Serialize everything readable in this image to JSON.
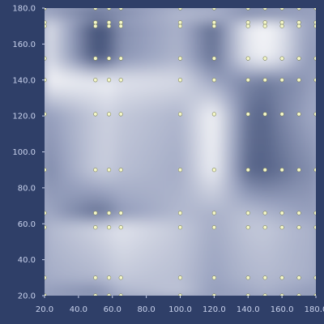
{
  "chart_data": {
    "type": "heatmap",
    "title": "",
    "xlabel": "",
    "ylabel": "",
    "xlim": [
      20,
      180
    ],
    "ylim": [
      20,
      180
    ],
    "x_ticks": [
      20,
      40,
      60,
      80,
      100,
      120,
      140,
      160,
      180
    ],
    "y_ticks": [
      20,
      40,
      60,
      80,
      100,
      120,
      140,
      160,
      180
    ],
    "x_tick_labels": [
      "20.0",
      "40.0",
      "60.0",
      "80.0",
      "100.0",
      "120.0",
      "140.0",
      "160.0",
      "180.0"
    ],
    "y_tick_labels": [
      "20.0",
      "40.0",
      "60.0",
      "80.0",
      "100.0",
      "120.0",
      "140.0",
      "160.0",
      "180.0"
    ],
    "grid": false,
    "colormap": [
      "#2f3f68",
      "#9aa3c0",
      "#ffffff"
    ],
    "sample_x": [
      20,
      50,
      58,
      65,
      100,
      120,
      140,
      150,
      160,
      170,
      180
    ],
    "sample_y": [
      20,
      30,
      58,
      66,
      90,
      121,
      140,
      152,
      170,
      172,
      180
    ],
    "points_color": "#f4f7c8",
    "field": [
      [
        0.4,
        0.15,
        0.22,
        0.3,
        0.62,
        0.58,
        0.3,
        0.32,
        0.36,
        0.4,
        0.42
      ],
      [
        0.75,
        0.45,
        0.48,
        0.52,
        0.6,
        0.55,
        0.58,
        0.62,
        0.6,
        0.58,
        0.55
      ],
      [
        0.9,
        0.1,
        0.15,
        0.4,
        0.58,
        0.22,
        0.88,
        0.95,
        0.85,
        0.6,
        0.45
      ],
      [
        0.88,
        0.12,
        0.18,
        0.42,
        0.6,
        0.25,
        0.85,
        0.92,
        0.82,
        0.58,
        0.4
      ],
      [
        0.95,
        0.9,
        0.92,
        0.85,
        0.8,
        0.5,
        0.35,
        0.3,
        0.35,
        0.4,
        0.5
      ],
      [
        0.45,
        0.7,
        0.75,
        0.7,
        0.6,
        0.95,
        0.25,
        0.2,
        0.35,
        0.45,
        0.55
      ],
      [
        0.35,
        0.7,
        0.72,
        0.65,
        0.55,
        0.92,
        0.2,
        0.18,
        0.25,
        0.35,
        0.4
      ],
      [
        0.55,
        0.25,
        0.3,
        0.45,
        0.62,
        0.58,
        0.65,
        0.6,
        0.55,
        0.5,
        0.48
      ],
      [
        0.6,
        0.75,
        0.8,
        0.85,
        0.7,
        0.55,
        0.68,
        0.7,
        0.65,
        0.6,
        0.58
      ],
      [
        0.55,
        0.6,
        0.65,
        0.7,
        0.65,
        0.5,
        0.6,
        0.62,
        0.6,
        0.58,
        0.55
      ],
      [
        0.45,
        0.3,
        0.4,
        0.55,
        0.7,
        0.45,
        0.5,
        0.55,
        0.5,
        0.45,
        0.4
      ]
    ],
    "points": [
      [
        20,
        180
      ],
      [
        50,
        180
      ],
      [
        58,
        180
      ],
      [
        65,
        180
      ],
      [
        100,
        180
      ],
      [
        120,
        180
      ],
      [
        140,
        180
      ],
      [
        150,
        180
      ],
      [
        160,
        180
      ],
      [
        170,
        180
      ],
      [
        180,
        180
      ],
      [
        20,
        172
      ],
      [
        50,
        172
      ],
      [
        58,
        172
      ],
      [
        65,
        172
      ],
      [
        100,
        172
      ],
      [
        120,
        172
      ],
      [
        140,
        172
      ],
      [
        150,
        172
      ],
      [
        160,
        172
      ],
      [
        170,
        172
      ],
      [
        180,
        172
      ],
      [
        20,
        170
      ],
      [
        50,
        170
      ],
      [
        58,
        170
      ],
      [
        65,
        170
      ],
      [
        100,
        170
      ],
      [
        120,
        170
      ],
      [
        140,
        170
      ],
      [
        150,
        170
      ],
      [
        160,
        170
      ],
      [
        170,
        170
      ],
      [
        180,
        170
      ],
      [
        20,
        152
      ],
      [
        50,
        152
      ],
      [
        58,
        152
      ],
      [
        65,
        152
      ],
      [
        100,
        152
      ],
      [
        120,
        152
      ],
      [
        140,
        152
      ],
      [
        150,
        152
      ],
      [
        160,
        152
      ],
      [
        170,
        152
      ],
      [
        180,
        152
      ],
      [
        20,
        140
      ],
      [
        50,
        140
      ],
      [
        58,
        140
      ],
      [
        65,
        140
      ],
      [
        100,
        140
      ],
      [
        120,
        140
      ],
      [
        140,
        140
      ],
      [
        150,
        140
      ],
      [
        160,
        140
      ],
      [
        170,
        140
      ],
      [
        180,
        140
      ],
      [
        20,
        121
      ],
      [
        50,
        121
      ],
      [
        58,
        121
      ],
      [
        65,
        121
      ],
      [
        100,
        121
      ],
      [
        120,
        121
      ],
      [
        140,
        121
      ],
      [
        150,
        121
      ],
      [
        160,
        121
      ],
      [
        170,
        121
      ],
      [
        180,
        121
      ],
      [
        20,
        90
      ],
      [
        50,
        90
      ],
      [
        58,
        90
      ],
      [
        65,
        90
      ],
      [
        100,
        90
      ],
      [
        120,
        90
      ],
      [
        140,
        90
      ],
      [
        150,
        90
      ],
      [
        160,
        90
      ],
      [
        170,
        90
      ],
      [
        180,
        90
      ],
      [
        20,
        66
      ],
      [
        50,
        66
      ],
      [
        58,
        66
      ],
      [
        65,
        66
      ],
      [
        100,
        66
      ],
      [
        120,
        66
      ],
      [
        140,
        66
      ],
      [
        150,
        66
      ],
      [
        160,
        66
      ],
      [
        170,
        66
      ],
      [
        180,
        66
      ],
      [
        20,
        58
      ],
      [
        50,
        58
      ],
      [
        58,
        58
      ],
      [
        65,
        58
      ],
      [
        100,
        58
      ],
      [
        120,
        58
      ],
      [
        140,
        58
      ],
      [
        150,
        58
      ],
      [
        160,
        58
      ],
      [
        170,
        58
      ],
      [
        180,
        58
      ],
      [
        20,
        30
      ],
      [
        50,
        30
      ],
      [
        58,
        30
      ],
      [
        65,
        30
      ],
      [
        100,
        30
      ],
      [
        120,
        30
      ],
      [
        140,
        30
      ],
      [
        150,
        30
      ],
      [
        160,
        30
      ],
      [
        170,
        30
      ],
      [
        180,
        30
      ],
      [
        20,
        20
      ],
      [
        50,
        20
      ],
      [
        58,
        20
      ],
      [
        65,
        20
      ],
      [
        100,
        20
      ],
      [
        120,
        20
      ],
      [
        140,
        20
      ],
      [
        150,
        20
      ],
      [
        160,
        20
      ],
      [
        170,
        20
      ],
      [
        180,
        20
      ]
    ]
  }
}
